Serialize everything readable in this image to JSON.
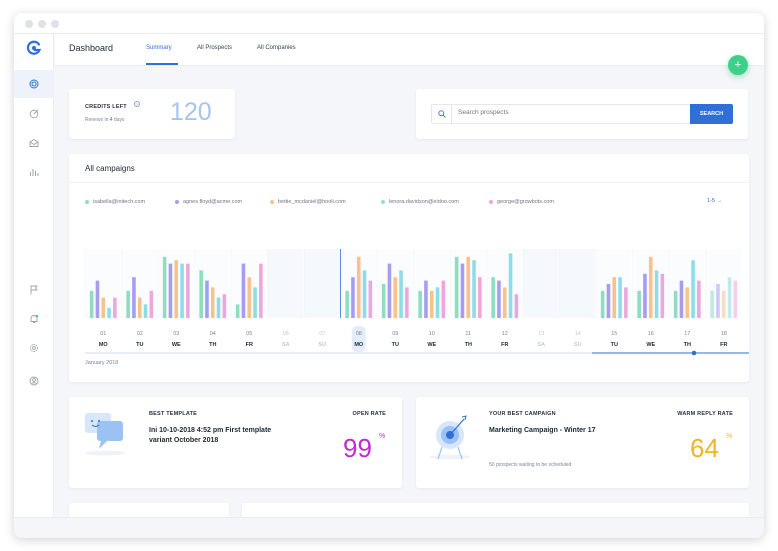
{
  "header": {
    "title": "Dashboard",
    "tabs": [
      {
        "label": "Summary",
        "active": true
      },
      {
        "label": "All Prospects",
        "active": false
      },
      {
        "label": "All Companies",
        "active": false
      }
    ],
    "fab_label": "+"
  },
  "sidebar": {
    "items": [
      {
        "icon": "target-icon",
        "active": true
      },
      {
        "icon": "goal-icon",
        "active": false
      },
      {
        "icon": "mail-icon",
        "active": false
      },
      {
        "icon": "bar-chart-icon",
        "active": false
      },
      {
        "icon": "flag-icon",
        "active": false
      },
      {
        "icon": "bell-icon",
        "active": false
      },
      {
        "icon": "gear-icon",
        "active": false
      },
      {
        "icon": "user-icon",
        "active": false
      }
    ]
  },
  "credits": {
    "label": "CREDITS LEFT",
    "help": "?",
    "renews_prefix": "Renews in",
    "renews_days": "4",
    "renews_suffix": "days",
    "value": "120"
  },
  "search": {
    "placeholder": "Search prospects",
    "button_label": "SEARCH"
  },
  "campaigns": {
    "title": "All campaigns",
    "pager": "1-5",
    "month": "January 2018",
    "legend": [
      {
        "name": "isabella@initech.com",
        "color": "#8fdcc0"
      },
      {
        "name": "agnes.floyd@acme.com",
        "color": "#a79cf0"
      },
      {
        "name": "bettie_mcdaniel@hooli.com",
        "color": "#f7c28c"
      },
      {
        "name": "lenora.davidson@eidoo.com",
        "color": "#8fdbe8"
      },
      {
        "name": "george@growbots.com",
        "color": "#eea7dd"
      }
    ]
  },
  "chart_data": {
    "type": "bar",
    "categories": [
      {
        "day": "01",
        "dow": "MO"
      },
      {
        "day": "02",
        "dow": "TU"
      },
      {
        "day": "03",
        "dow": "WE"
      },
      {
        "day": "04",
        "dow": "TH"
      },
      {
        "day": "05",
        "dow": "FR"
      },
      {
        "day": "06",
        "dow": "SA"
      },
      {
        "day": "07",
        "dow": "SU"
      },
      {
        "day": "08",
        "dow": "MO"
      },
      {
        "day": "09",
        "dow": "TU"
      },
      {
        "day": "10",
        "dow": "WE"
      },
      {
        "day": "11",
        "dow": "TH"
      },
      {
        "day": "12",
        "dow": "FR"
      },
      {
        "day": "13",
        "dow": "SA"
      },
      {
        "day": "14",
        "dow": "SU"
      },
      {
        "day": "15",
        "dow": "TU"
      },
      {
        "day": "16",
        "dow": "WE"
      },
      {
        "day": "17",
        "dow": "TH"
      },
      {
        "day": "18",
        "dow": "FR"
      }
    ],
    "weekend_days": [
      "06",
      "07",
      "13",
      "14"
    ],
    "today": "08",
    "series": [
      {
        "name": "isabella@initech.com",
        "color": "#8fdcc0",
        "values": [
          40,
          40,
          90,
          70,
          20,
          0,
          0,
          40,
          50,
          40,
          90,
          60,
          0,
          0,
          40,
          40,
          40,
          40
        ]
      },
      {
        "name": "agnes.floyd@acme.com",
        "color": "#a79cf0",
        "values": [
          55,
          60,
          80,
          55,
          80,
          0,
          0,
          60,
          80,
          55,
          80,
          55,
          0,
          0,
          50,
          65,
          55,
          50
        ]
      },
      {
        "name": "bettie_mcdaniel@hooli.com",
        "color": "#f7c28c",
        "values": [
          30,
          30,
          85,
          45,
          60,
          0,
          0,
          90,
          60,
          40,
          90,
          45,
          0,
          0,
          60,
          90,
          45,
          40
        ]
      },
      {
        "name": "lenora.davidson@eidoo.com",
        "color": "#8fdbe8",
        "values": [
          15,
          20,
          80,
          30,
          45,
          0,
          0,
          70,
          70,
          45,
          85,
          95,
          0,
          0,
          60,
          70,
          85,
          60
        ]
      },
      {
        "name": "george@growbots.com",
        "color": "#eea7dd",
        "values": [
          30,
          40,
          80,
          35,
          80,
          0,
          0,
          55,
          45,
          55,
          60,
          35,
          0,
          0,
          45,
          65,
          55,
          55
        ]
      }
    ],
    "ylim": [
      0,
      100
    ]
  },
  "best_template": {
    "label": "BEST TEMPLATE",
    "text": "Ini 10-10-2018 4:52 pm First template variant October 2018",
    "rate_label": "OPEN RATE",
    "rate_value": "99",
    "rate_unit": "%",
    "color": "#c02bd0"
  },
  "best_campaign": {
    "label": "YOUR BEST CAMPAIGN",
    "name": "Marketing Campaign - Winter 17",
    "sub": "50 prospects waiting to be scheduled",
    "rate_label": "WARM REPLY RATE",
    "rate_value": "64",
    "rate_unit": "%",
    "color": "#f0b429"
  }
}
